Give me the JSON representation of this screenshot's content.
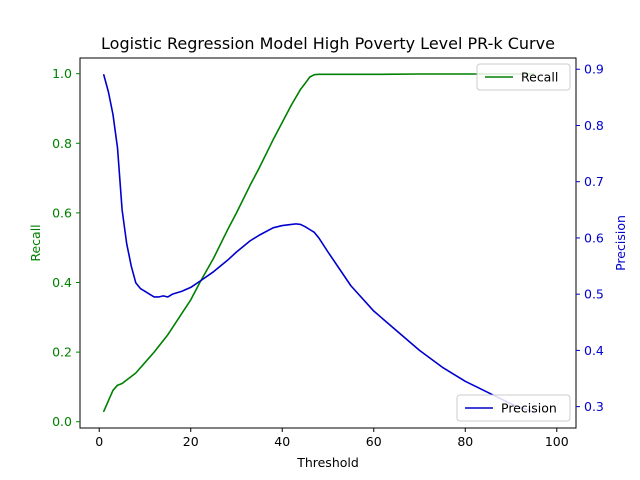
{
  "chart_data": {
    "type": "line",
    "title": "Logistic Regression Model High Poverty Level PR-k Curve",
    "xlabel": "Threshold",
    "ylabel_left": "Recall",
    "ylabel_right": "Precision",
    "xlim": [
      -4.2,
      104.2
    ],
    "ylim_left": [
      -0.018,
      1.045
    ],
    "ylim_right": [
      0.262,
      0.92
    ],
    "x_ticks": [
      0,
      20,
      40,
      60,
      80,
      100
    ],
    "y_left_ticks": [
      0.0,
      0.2,
      0.4,
      0.6,
      0.8,
      1.0
    ],
    "y_right_ticks": [
      0.3,
      0.4,
      0.5,
      0.6,
      0.7,
      0.8,
      0.9
    ],
    "left_axis_color": "#008000",
    "right_axis_color": "#0000cc",
    "grid": false,
    "series": [
      {
        "name": "Recall",
        "axis": "left",
        "color": "#008000",
        "legend_position": "top-right",
        "x": [
          1,
          2,
          3,
          4,
          5,
          6,
          8,
          10,
          12,
          15,
          18,
          20,
          22,
          25,
          28,
          30,
          33,
          35,
          38,
          40,
          42,
          44,
          45,
          46,
          47,
          48,
          50,
          55,
          60,
          70,
          80,
          90,
          95
        ],
        "y": [
          0.03,
          0.06,
          0.09,
          0.105,
          0.11,
          0.12,
          0.14,
          0.17,
          0.2,
          0.25,
          0.31,
          0.35,
          0.4,
          0.47,
          0.55,
          0.6,
          0.68,
          0.73,
          0.81,
          0.86,
          0.91,
          0.955,
          0.972,
          0.99,
          0.997,
          0.998,
          0.998,
          0.998,
          0.998,
          0.999,
          0.999,
          0.999,
          0.999
        ]
      },
      {
        "name": "Precision",
        "axis": "right",
        "color": "#0000cc",
        "legend_position": "bottom-right",
        "x": [
          1,
          2,
          3,
          4,
          5,
          6,
          7,
          8,
          9,
          10,
          11,
          12,
          13,
          14,
          15,
          16,
          18,
          20,
          22,
          25,
          28,
          30,
          33,
          35,
          38,
          40,
          42,
          43,
          44,
          45,
          46,
          47,
          48,
          50,
          55,
          60,
          65,
          70,
          75,
          80,
          85,
          90,
          95
        ],
        "y": [
          0.89,
          0.86,
          0.82,
          0.76,
          0.65,
          0.59,
          0.55,
          0.52,
          0.51,
          0.505,
          0.5,
          0.495,
          0.495,
          0.497,
          0.495,
          0.5,
          0.505,
          0.512,
          0.523,
          0.54,
          0.56,
          0.575,
          0.595,
          0.605,
          0.618,
          0.622,
          0.624,
          0.625,
          0.624,
          0.62,
          0.615,
          0.61,
          0.6,
          0.575,
          0.515,
          0.47,
          0.435,
          0.4,
          0.37,
          0.345,
          0.325,
          0.305,
          0.29
        ]
      }
    ]
  }
}
